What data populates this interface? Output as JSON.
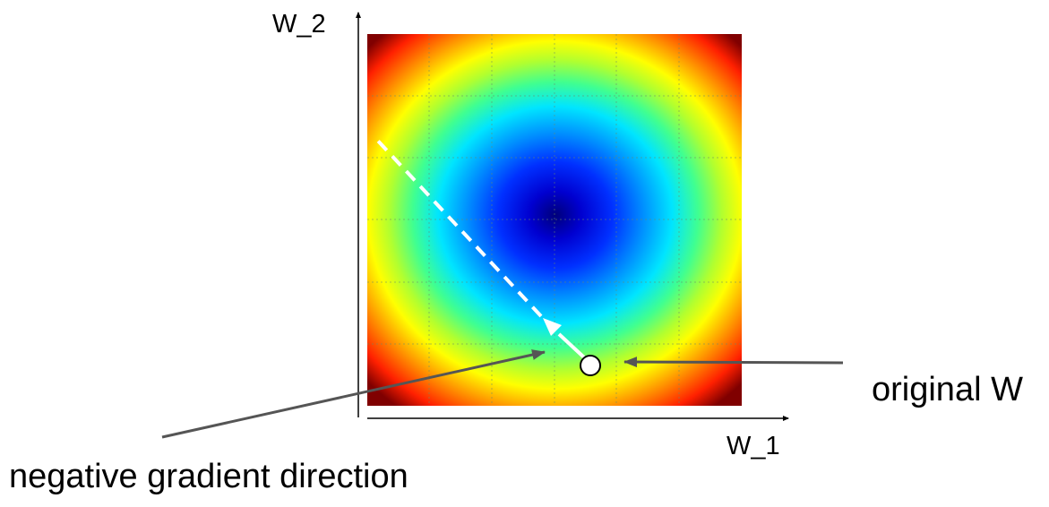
{
  "axes": {
    "x_label": "W_1",
    "y_label": "W_2"
  },
  "annotations": {
    "original_point": "original W",
    "gradient_direction": "negative gradient direction"
  },
  "colors": {
    "colormap": [
      "#00007a",
      "#0000ff",
      "#0080ff",
      "#00e5ff",
      "#40ff90",
      "#c0ff30",
      "#ffff00",
      "#ff9000",
      "#ff2000",
      "#800000"
    ],
    "grid": "#6a8a6a",
    "arrow_path": "#ffffff",
    "pointer": "#555555",
    "axis": "#000000"
  },
  "icons": {
    "point": "circle-marker",
    "step": "arrow-icon"
  }
}
